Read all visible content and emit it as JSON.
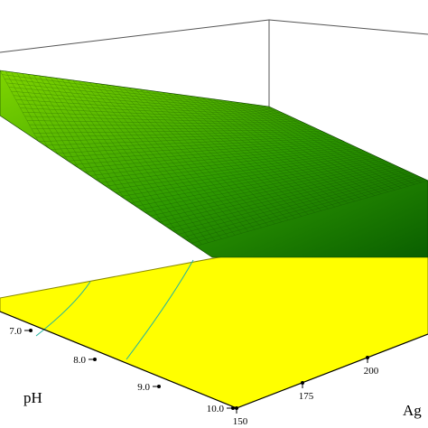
{
  "chart_data": {
    "type": "surface3d",
    "x_axis": {
      "label": "pH",
      "ticks": [
        "7.0",
        "8.0",
        "9.0",
        "10.0"
      ]
    },
    "y_axis": {
      "label": "Ag",
      "ticks": [
        "150",
        "175",
        "200"
      ]
    },
    "colors": {
      "surface_light": "#7fd400",
      "surface_dark": "#0a5f00",
      "mesh": "#0d3d00",
      "floor": "#ffff00",
      "floor_edge": "#8a8a00",
      "contour": "#22b3a0",
      "frame": "#555555"
    }
  }
}
